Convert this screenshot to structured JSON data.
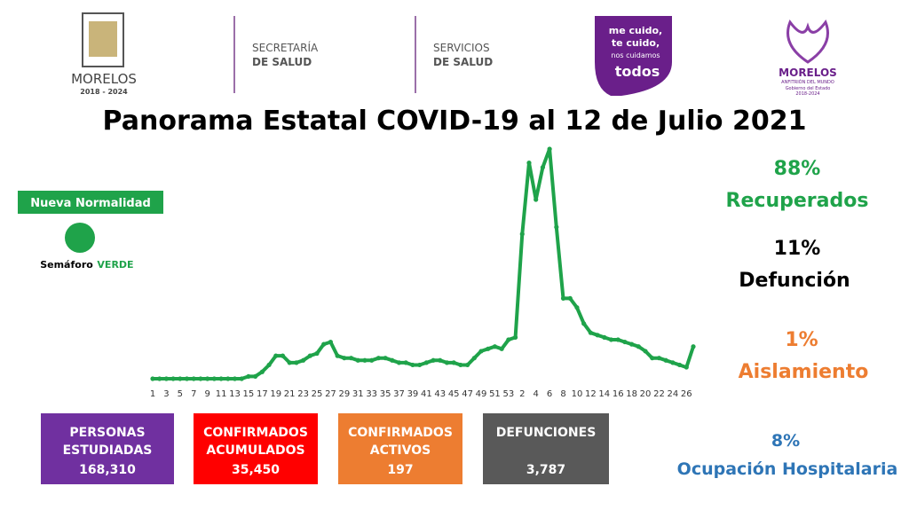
{
  "header": {
    "morelos": "MORELOS",
    "morelos_years": "2018 - 2024",
    "secretaria_1": "SECRETARÍA",
    "secretaria_2": "DE SALUD",
    "servicios_1": "SERVICIOS",
    "servicios_2": "DE SALUD",
    "slogan": [
      "me cuido,",
      "te cuido,",
      "nos cuidamos",
      "todos"
    ],
    "gobierno": "MORELOS",
    "gobierno_sub": "ANFITRIÓN DEL MUNDO",
    "gobierno_line": "Gobierno del Estado",
    "gobierno_years": "2018-2024"
  },
  "chart_data": {
    "type": "line",
    "title": "Panorama Estatal COVID-19 al 12 de Julio 2021",
    "color": "#1fa34a",
    "categories": [
      "1",
      null,
      "3",
      null,
      "5",
      null,
      "7",
      null,
      "9",
      null,
      "11",
      null,
      "13",
      null,
      "15",
      null,
      "17",
      null,
      "19",
      null,
      "21",
      null,
      "23",
      null,
      "25",
      null,
      "27",
      null,
      "29",
      null,
      "31",
      null,
      "33",
      null,
      "35",
      null,
      "37",
      null,
      "39",
      null,
      "41",
      null,
      "43",
      null,
      "45",
      null,
      "47",
      null,
      "49",
      null,
      "51",
      null,
      "53",
      null,
      "2",
      null,
      "4",
      null,
      "6",
      null,
      "8",
      null,
      "10",
      null,
      "12",
      null,
      "14",
      null,
      "16",
      null,
      "18",
      null,
      "20",
      null,
      "22",
      null,
      "24",
      null,
      "26",
      null
    ],
    "values": [
      0,
      0,
      0,
      0,
      0,
      0,
      0,
      0,
      0,
      0,
      0,
      0,
      0,
      0,
      1,
      1,
      3,
      6,
      10,
      10,
      7,
      7,
      8,
      10,
      11,
      15,
      16,
      10,
      9,
      9,
      8,
      8,
      8,
      9,
      9,
      8,
      7,
      7,
      6,
      6,
      7,
      8,
      8,
      7,
      7,
      6,
      6,
      9,
      12,
      13,
      14,
      13,
      17,
      18,
      63,
      94,
      78,
      92,
      100,
      66,
      35,
      35,
      31,
      24,
      20,
      19,
      18,
      17,
      17,
      16,
      15,
      14,
      12,
      9,
      9,
      8,
      7,
      6,
      5,
      14
    ]
  },
  "status": {
    "label": "Nueva Normalidad",
    "semaforo": "Semáforo",
    "color_word": "VERDE"
  },
  "boxes": [
    {
      "label": "PERSONAS ESTUDIADAS",
      "value": "168,310"
    },
    {
      "label": "CONFIRMADOS ACUMULADOS",
      "value": "35,450"
    },
    {
      "label": "CONFIRMADOS ACTIVOS",
      "value": "197"
    },
    {
      "label": "DEFUNCIONES",
      "value": "3,787"
    }
  ],
  "stats": [
    {
      "value": "88%",
      "label": "Recuperados"
    },
    {
      "value": "11%",
      "label": "Defunción"
    },
    {
      "value": "1%",
      "label": "Aislamiento"
    },
    {
      "value": "8%",
      "label": "Ocupación Hospitalaria"
    }
  ]
}
